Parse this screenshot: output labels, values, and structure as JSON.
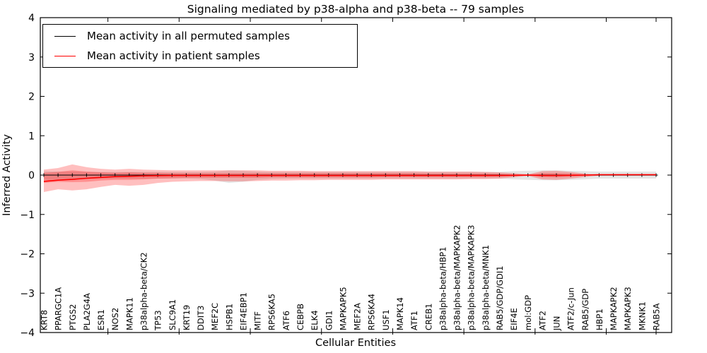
{
  "figure": {
    "background": "#ffffff"
  },
  "chart_data": {
    "type": "line",
    "title": "Signaling mediated by p38-alpha and p38-beta -- 79 samples",
    "xlabel": "Cellular Entities",
    "ylabel": "Inferred Activity",
    "ylim": [
      -4,
      4
    ],
    "ytick_labels": [
      "4",
      "3",
      "2",
      "1",
      "0",
      "−1",
      "−2",
      "−3",
      "−4"
    ],
    "grid": false,
    "legend_position": "upper left",
    "categories": [
      "KRT8",
      "PPARGC1A",
      "PTGS2",
      "PLA2G4A",
      "ESR1",
      "NOS2",
      "MAPK11",
      "p38alpha-beta/CK2",
      "TP53",
      "SLC9A1",
      "KRT19",
      "DDIT3",
      "MEF2C",
      "HSPB1",
      "EIF4EBP1",
      "MITF",
      "RPS6KA5",
      "ATF6",
      "CEBPB",
      "ELK4",
      "GDI1",
      "MAPKAPK5",
      "MEF2A",
      "RPS6KA4",
      "USF1",
      "MAPK14",
      "ATF1",
      "CREB1",
      "p38alpha-beta/HBP1",
      "p38alpha-beta/MAPKAPK2",
      "p38alpha-beta/MAPKAPK3",
      "p38alpha-beta/MNK1",
      "RAB5/GDP/GDI1",
      "EIF4E",
      "mol:GDP",
      "ATF2",
      "JUN",
      "ATF2/c-Jun",
      "RAB5/GDP",
      "HBP1",
      "MAPKAPK2",
      "MAPKAPK3",
      "MKNK1",
      "RAB5A"
    ],
    "series": [
      {
        "name": "Mean activity in all permuted samples",
        "color": "#000000",
        "marker": "+",
        "line_width": 1,
        "values": [
          0,
          0,
          0,
          0,
          0,
          0,
          0,
          0,
          0,
          0,
          0,
          0,
          0,
          0,
          0,
          0,
          0,
          0,
          0,
          0,
          0,
          0,
          0,
          0,
          0,
          0,
          0,
          0,
          0,
          0,
          0,
          0,
          0,
          0,
          0,
          0,
          0,
          0,
          0,
          0,
          0,
          0,
          0,
          0
        ]
      },
      {
        "name": "Mean activity in patient samples",
        "color": "#ff0000",
        "marker": "none",
        "line_width": 1.6,
        "values": [
          -0.16,
          -0.13,
          -0.11,
          -0.08,
          -0.06,
          -0.04,
          -0.03,
          -0.02,
          -0.015,
          -0.01,
          -0.01,
          -0.01,
          -0.01,
          -0.01,
          -0.01,
          -0.01,
          -0.01,
          -0.01,
          -0.01,
          -0.01,
          -0.01,
          -0.01,
          -0.01,
          -0.01,
          -0.01,
          -0.01,
          -0.01,
          -0.01,
          -0.01,
          -0.01,
          -0.01,
          -0.01,
          -0.01,
          -0.005,
          0,
          -0.01,
          -0.01,
          -0.005,
          0,
          0.01,
          0.01,
          0.01,
          0.01,
          0.01
        ]
      }
    ],
    "bands": [
      {
        "name": "permuted-sample-range",
        "color": "rgba(0,0,0,0.10)",
        "upper": [
          0.1,
          0.09,
          0.09,
          0.08,
          0.08,
          0.08,
          0.08,
          0.08,
          0.08,
          0.08,
          0.08,
          0.08,
          0.09,
          0.12,
          0.11,
          0.09,
          0.08,
          0.08,
          0.08,
          0.08,
          0.08,
          0.08,
          0.08,
          0.08,
          0.08,
          0.08,
          0.08,
          0.08,
          0.08,
          0.08,
          0.08,
          0.08,
          0.08,
          0.1,
          0.11,
          0.12,
          0.12,
          0.11,
          0.1,
          0.09,
          0.09,
          0.09,
          0.09,
          0.09
        ],
        "lower": [
          -0.12,
          -0.11,
          -0.1,
          -0.1,
          -0.09,
          -0.09,
          -0.09,
          -0.09,
          -0.09,
          -0.09,
          -0.09,
          -0.1,
          -0.14,
          -0.2,
          -0.17,
          -0.12,
          -0.1,
          -0.09,
          -0.09,
          -0.09,
          -0.09,
          -0.09,
          -0.09,
          -0.09,
          -0.09,
          -0.09,
          -0.09,
          -0.09,
          -0.09,
          -0.09,
          -0.09,
          -0.09,
          -0.09,
          -0.11,
          -0.12,
          -0.13,
          -0.13,
          -0.12,
          -0.11,
          -0.09,
          -0.09,
          -0.09,
          -0.09,
          -0.09
        ]
      },
      {
        "name": "patient-sample-outer-range",
        "color": "rgba(255,0,0,0.25)",
        "upper": [
          0.14,
          0.18,
          0.27,
          0.2,
          0.16,
          0.14,
          0.16,
          0.14,
          0.13,
          0.12,
          0.12,
          0.12,
          0.12,
          0.12,
          0.12,
          0.12,
          0.11,
          0.11,
          0.11,
          0.1,
          0.1,
          0.1,
          0.1,
          0.1,
          0.1,
          0.1,
          0.1,
          0.09,
          0.09,
          0.09,
          0.09,
          0.08,
          0.07,
          0.05,
          0.02,
          0.1,
          0.11,
          0.08,
          0.04,
          0.01,
          0.01,
          0.01,
          0.01,
          0.01
        ],
        "lower": [
          -0.43,
          -0.36,
          -0.39,
          -0.36,
          -0.3,
          -0.25,
          -0.27,
          -0.25,
          -0.2,
          -0.17,
          -0.16,
          -0.15,
          -0.15,
          -0.16,
          -0.16,
          -0.15,
          -0.14,
          -0.14,
          -0.13,
          -0.13,
          -0.12,
          -0.12,
          -0.12,
          -0.12,
          -0.11,
          -0.11,
          -0.11,
          -0.11,
          -0.11,
          -0.11,
          -0.1,
          -0.1,
          -0.09,
          -0.06,
          -0.02,
          -0.11,
          -0.12,
          -0.09,
          -0.05,
          -0.01,
          -0.01,
          -0.01,
          -0.01,
          -0.01
        ]
      },
      {
        "name": "patient-sample-inner-range",
        "color": "rgba(255,0,0,0.25)",
        "upper": [
          0.06,
          0.08,
          0.12,
          0.09,
          0.07,
          0.06,
          0.07,
          0.06,
          0.06,
          0.05,
          0.05,
          0.05,
          0.05,
          0.05,
          0.05,
          0.05,
          0.05,
          0.05,
          0.05,
          0.05,
          0.05,
          0.05,
          0.05,
          0.05,
          0.05,
          0.05,
          0.05,
          0.04,
          0.04,
          0.04,
          0.04,
          0.04,
          0.03,
          0.02,
          0.01,
          0.05,
          0.05,
          0.04,
          0.02,
          0,
          0,
          0,
          0,
          0
        ],
        "lower": [
          -0.2,
          -0.17,
          -0.18,
          -0.17,
          -0.14,
          -0.12,
          -0.12,
          -0.11,
          -0.09,
          -0.08,
          -0.07,
          -0.07,
          -0.07,
          -0.07,
          -0.07,
          -0.07,
          -0.06,
          -0.06,
          -0.06,
          -0.06,
          -0.06,
          -0.06,
          -0.06,
          -0.06,
          -0.05,
          -0.05,
          -0.05,
          -0.05,
          -0.05,
          -0.05,
          -0.05,
          -0.05,
          -0.04,
          -0.03,
          -0.01,
          -0.05,
          -0.06,
          -0.04,
          -0.02,
          -0.01,
          -0.01,
          -0.01,
          -0.01,
          -0.01
        ]
      }
    ]
  }
}
